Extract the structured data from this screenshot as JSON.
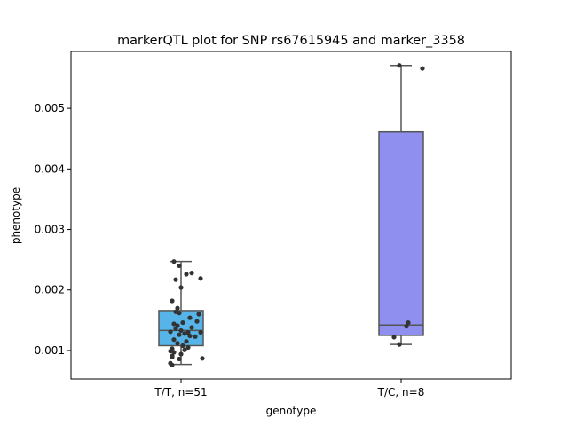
{
  "chart_data": {
    "type": "box",
    "title": "markerQTL plot for SNP rs67615945 and marker_3358",
    "xlabel": "genotype",
    "ylabel": "phenotype",
    "ylim": [
      0.00053,
      0.00594
    ],
    "yticks": [
      0.001,
      0.002,
      0.003,
      0.004,
      0.005
    ],
    "ytick_labels": [
      "0.001",
      "0.002",
      "0.003",
      "0.004",
      "0.005"
    ],
    "grid": false,
    "categories": [
      "T/T, n=51",
      "T/C, n=8"
    ],
    "colors": {
      "box_fills": [
        "#56b4e9",
        "#8f8ff0"
      ],
      "box_edge": "#555555",
      "points": "#333333"
    },
    "boxes": [
      {
        "category": "T/T, n=51",
        "whisker_low": 0.00077,
        "q1": 0.00108,
        "median": 0.00133,
        "q3": 0.00166,
        "whisker_high": 0.00247,
        "points": [
          [
            -0.04,
            0.00247
          ],
          [
            -0.01,
            0.0024
          ],
          [
            0.06,
            0.00228
          ],
          [
            0.03,
            0.00226
          ],
          [
            0.11,
            0.00219
          ],
          [
            -0.03,
            0.00217
          ],
          [
            0.0,
            0.00204
          ],
          [
            -0.05,
            0.00182
          ],
          [
            -0.02,
            0.0017
          ],
          [
            0.1,
            0.0016
          ],
          [
            -0.03,
            0.00164
          ],
          [
            -0.01,
            0.00162
          ],
          [
            0.05,
            0.00154
          ],
          [
            0.09,
            0.00148
          ],
          [
            0.01,
            0.00146
          ],
          [
            -0.04,
            0.00144
          ],
          [
            -0.02,
            0.00141
          ],
          [
            0.06,
            0.00138
          ],
          [
            -0.03,
            0.00136
          ],
          [
            0.0,
            0.00133
          ],
          [
            0.04,
            0.0013
          ],
          [
            -0.06,
            0.00131
          ],
          [
            0.11,
            0.0013
          ],
          [
            0.02,
            0.00128
          ],
          [
            -0.01,
            0.00126
          ],
          [
            0.05,
            0.00124
          ],
          [
            0.08,
            0.00123
          ],
          [
            -0.04,
            0.00118
          ],
          [
            0.03,
            0.00115
          ],
          [
            -0.02,
            0.00112
          ],
          [
            0.01,
            0.00108
          ],
          [
            0.04,
            0.00105
          ],
          [
            -0.05,
            0.00103
          ],
          [
            0.02,
            0.00101
          ],
          [
            -0.06,
            0.00099
          ],
          [
            -0.04,
            0.00097
          ],
          [
            0.0,
            0.00094
          ],
          [
            -0.05,
            0.00091
          ],
          [
            -0.05,
            0.00089
          ],
          [
            0.12,
            0.00087
          ],
          [
            -0.01,
            0.00086
          ],
          [
            -0.06,
            0.00079
          ],
          [
            -0.05,
            0.00076
          ]
        ]
      },
      {
        "category": "T/C, n=8",
        "whisker_low": 0.0011,
        "q1": 0.00125,
        "median": 0.00142,
        "q3": 0.00461,
        "whisker_high": 0.00571,
        "points": [
          [
            -0.01,
            0.00571
          ],
          [
            0.12,
            0.00566
          ],
          [
            0.04,
            0.00146
          ],
          [
            0.03,
            0.0014
          ],
          [
            -0.04,
            0.00122
          ],
          [
            -0.01,
            0.0011
          ]
        ]
      }
    ]
  }
}
